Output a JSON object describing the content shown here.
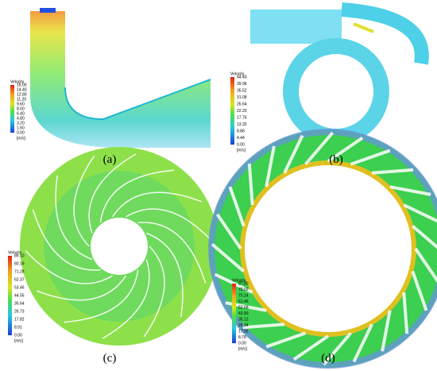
{
  "panels": [
    {
      "label": "(a)",
      "legend": {
        "title": "Velocity",
        "ticks": [
          "16.00",
          "14.40",
          "12.80",
          "11.20",
          "9.60",
          "8.00",
          "6.40",
          "4.80",
          "3.20",
          "1.60",
          "0.00"
        ],
        "unit": "[m/s]"
      }
    },
    {
      "label": "(b)",
      "legend": {
        "title": "Velocity",
        "ticks": [
          "44.40",
          "39.96",
          "35.52",
          "31.08",
          "26.64",
          "22.20",
          "17.76",
          "13.32",
          "8.88",
          "4.44",
          "0.00"
        ],
        "unit": "[m/s]"
      }
    },
    {
      "label": "(c)",
      "legend": {
        "title": "Velocity",
        "ticks": [
          "89.10",
          "80.19",
          "71.28",
          "62.37",
          "53.46",
          "44.55",
          "35.64",
          "26.73",
          "17.82",
          "8.91",
          "0.00"
        ],
        "unit": "[m/s]"
      }
    },
    {
      "label": "(d)",
      "legend": {
        "title": "Velocity",
        "ticks": [
          "87.80",
          "79.02",
          "70.24",
          "61.46",
          "52.68",
          "43.90",
          "35.12",
          "26.34",
          "17.56",
          "8.78",
          "0.00"
        ],
        "unit": "[m/s]"
      }
    }
  ]
}
